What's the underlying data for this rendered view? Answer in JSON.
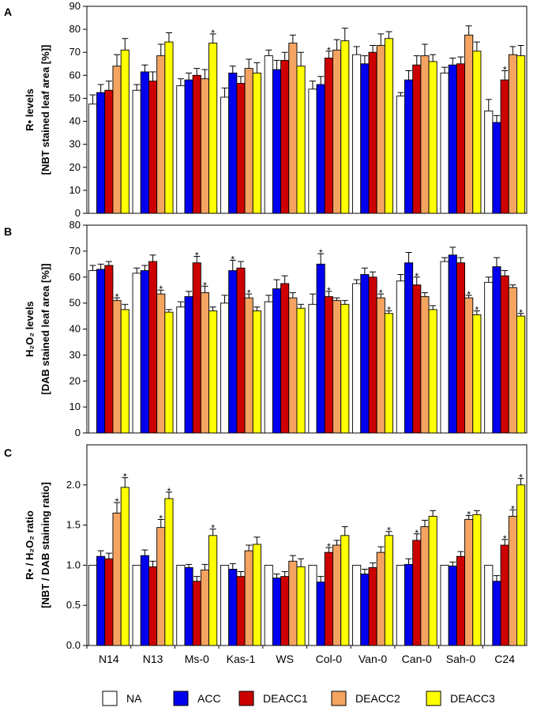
{
  "chart_data": [
    {
      "type": "bar",
      "panel": "A",
      "ylabel_line1": "R• levels",
      "ylabel_line2": "[NBT stained leaf area [%]]",
      "ylim": [
        0,
        90
      ],
      "yticks": [
        "0",
        "10",
        "20",
        "30",
        "40",
        "50",
        "60",
        "70",
        "80",
        "90"
      ],
      "categories": [
        "N14",
        "N13",
        "Ms-0",
        "Kas-1",
        "WS",
        "Col-0",
        "Van-0",
        "Can-0",
        "Sah-0",
        "C24"
      ],
      "series": [
        {
          "name": "NA",
          "values": [
            47.5,
            53.5,
            55.5,
            50.5,
            68.5,
            54,
            69,
            51,
            61,
            44.5
          ],
          "errors": [
            4,
            2.5,
            3,
            4,
            2.5,
            3.5,
            3.5,
            1.5,
            2.5,
            5
          ]
        },
        {
          "name": "ACC",
          "values": [
            52.5,
            61.5,
            58,
            61,
            62.5,
            56,
            65,
            58,
            64.5,
            39.5
          ],
          "errors": [
            3.5,
            3,
            3,
            3,
            4,
            3.5,
            3.5,
            4,
            3,
            3
          ]
        },
        {
          "name": "DEACC1",
          "values": [
            53.5,
            57.5,
            60,
            56.5,
            66.5,
            67.5,
            70,
            64.5,
            65,
            58
          ],
          "errors": [
            4,
            4,
            3,
            3,
            3.5,
            3,
            3,
            4,
            3,
            4
          ]
        },
        {
          "name": "DEACC2",
          "values": [
            64,
            68.5,
            58.5,
            63,
            74,
            71,
            73,
            68.5,
            77.5,
            69
          ],
          "errors": [
            5,
            5,
            4,
            4,
            3.5,
            4.5,
            5,
            5,
            4,
            3.5
          ]
        },
        {
          "name": "DEACC3",
          "values": [
            71,
            74.5,
            74,
            61,
            64,
            75,
            76,
            66,
            70.5,
            68.5
          ],
          "errors": [
            5,
            4,
            4,
            4.5,
            6,
            5.5,
            3,
            3,
            4,
            4.5
          ]
        }
      ],
      "stars": [
        {
          "category": "Ms-0",
          "series": "DEACC3"
        },
        {
          "category": "Col-0",
          "series": "DEACC1"
        },
        {
          "category": "C24",
          "series": "DEACC1"
        }
      ]
    },
    {
      "type": "bar",
      "panel": "B",
      "ylabel_line1": "H₂O₂ levels",
      "ylabel_line2": "[DAB stained leaf area [%]]",
      "ylim": [
        0,
        80
      ],
      "yticks": [
        "0",
        "10",
        "20",
        "30",
        "40",
        "50",
        "60",
        "70",
        "80"
      ],
      "categories": [
        "N14",
        "N13",
        "Ms-0",
        "Kas-1",
        "WS",
        "Col-0",
        "Van-0",
        "Can-0",
        "Sah-0",
        "C24"
      ],
      "series": [
        {
          "name": "NA",
          "values": [
            62.5,
            61.5,
            48.5,
            50,
            50.5,
            49.5,
            57.5,
            58.5,
            66,
            58
          ],
          "errors": [
            2,
            2,
            2,
            3,
            2.5,
            4,
            1.5,
            2.5,
            1.5,
            2
          ]
        },
        {
          "name": "ACC",
          "values": [
            63,
            62.5,
            52.5,
            62.5,
            55.5,
            65,
            61,
            65.5,
            68.5,
            64
          ],
          "errors": [
            2,
            2,
            2,
            4,
            3.5,
            4,
            2.5,
            4,
            3,
            3.5
          ]
        },
        {
          "name": "DEACC1",
          "values": [
            64.5,
            66,
            65.5,
            63.5,
            57.5,
            52.5,
            60,
            57,
            65.5,
            60.5
          ],
          "errors": [
            1.5,
            2.5,
            2.5,
            2.5,
            3,
            2,
            2,
            3,
            2,
            2
          ]
        },
        {
          "name": "DEACC2",
          "values": [
            51,
            53.5,
            54,
            52,
            52,
            51,
            52,
            52.5,
            52,
            56
          ],
          "errors": [
            1,
            1.5,
            2.5,
            1.5,
            2,
            1,
            1.5,
            1.5,
            1,
            1
          ]
        },
        {
          "name": "DEACC3",
          "values": [
            47.5,
            46.5,
            47,
            47,
            48,
            49.5,
            46,
            47.5,
            45.5,
            45
          ],
          "errors": [
            2,
            1,
            1.5,
            1.5,
            1.5,
            1.5,
            1,
            1.5,
            1.5,
            1
          ]
        }
      ],
      "stars": [
        {
          "category": "N14",
          "series": "DEACC2"
        },
        {
          "category": "N13",
          "series": "DEACC2"
        },
        {
          "category": "Ms-0",
          "series": "DEACC1"
        },
        {
          "category": "Ms-0",
          "series": "DEACC2"
        },
        {
          "category": "Kas-1",
          "series": "ACC"
        },
        {
          "category": "Kas-1",
          "series": "DEACC2"
        },
        {
          "category": "Col-0",
          "series": "ACC"
        },
        {
          "category": "Col-0",
          "series": "DEACC1"
        },
        {
          "category": "Van-0",
          "series": "DEACC2"
        },
        {
          "category": "Van-0",
          "series": "DEACC3"
        },
        {
          "category": "Can-0",
          "series": "DEACC1"
        },
        {
          "category": "Sah-0",
          "series": "DEACC2"
        },
        {
          "category": "Sah-0",
          "series": "DEACC3"
        },
        {
          "category": "C24",
          "series": "DEACC3"
        }
      ]
    },
    {
      "type": "bar",
      "panel": "C",
      "ylabel_line1": "R• / H₂O₂ ratio",
      "ylabel_line2": "[NBT / DAB staining ratio]",
      "ylim": [
        0,
        2.5
      ],
      "yticks": [
        "0.0",
        "0.5",
        "1.0",
        "1.5",
        "2.0"
      ],
      "ytick_values": [
        0,
        0.5,
        1.0,
        1.5,
        2.0
      ],
      "categories": [
        "N14",
        "N13",
        "Ms-0",
        "Kas-1",
        "WS",
        "Col-0",
        "Van-0",
        "Can-0",
        "Sah-0",
        "C24"
      ],
      "series": [
        {
          "name": "NA",
          "values": [
            1,
            1,
            1,
            1,
            1,
            1,
            1,
            1,
            1,
            1
          ],
          "errors": [
            0,
            0,
            0,
            0,
            0,
            0,
            0,
            0,
            0,
            0
          ]
        },
        {
          "name": "ACC",
          "values": [
            1.11,
            1.12,
            0.97,
            0.95,
            0.84,
            0.79,
            0.89,
            1.01,
            0.99,
            0.8
          ],
          "errors": [
            0.07,
            0.07,
            0.04,
            0.07,
            0.05,
            0.07,
            0.06,
            0.07,
            0.05,
            0.07
          ]
        },
        {
          "name": "DEACC1",
          "values": [
            1.08,
            0.98,
            0.8,
            0.86,
            0.86,
            1.16,
            0.97,
            1.31,
            1.11,
            1.25
          ],
          "errors": [
            0.07,
            0.07,
            0.06,
            0.06,
            0.06,
            0.06,
            0.06,
            0.08,
            0.06,
            0.07
          ]
        },
        {
          "name": "DEACC2",
          "values": [
            1.65,
            1.47,
            0.94,
            1.18,
            1.05,
            1.25,
            1.16,
            1.48,
            1.57,
            1.61
          ],
          "errors": [
            0.13,
            0.1,
            0.07,
            0.07,
            0.07,
            0.06,
            0.07,
            0.08,
            0.05,
            0.08
          ]
        },
        {
          "name": "DEACC3",
          "values": [
            1.97,
            1.83,
            1.37,
            1.26,
            0.98,
            1.37,
            1.37,
            1.61,
            1.63,
            2.0
          ],
          "errors": [
            0.12,
            0.08,
            0.08,
            0.09,
            0.1,
            0.11,
            0.05,
            0.07,
            0.05,
            0.08
          ]
        }
      ],
      "stars": [
        {
          "category": "N14",
          "series": "DEACC2"
        },
        {
          "category": "N14",
          "series": "DEACC3"
        },
        {
          "category": "N13",
          "series": "DEACC2"
        },
        {
          "category": "N13",
          "series": "DEACC3"
        },
        {
          "category": "Ms-0",
          "series": "DEACC3"
        },
        {
          "category": "Col-0",
          "series": "DEACC1"
        },
        {
          "category": "Van-0",
          "series": "DEACC3"
        },
        {
          "category": "Can-0",
          "series": "DEACC1"
        },
        {
          "category": "Sah-0",
          "series": "DEACC2"
        },
        {
          "category": "C24",
          "series": "DEACC1"
        },
        {
          "category": "C24",
          "series": "DEACC2"
        },
        {
          "category": "C24",
          "series": "DEACC3"
        }
      ]
    }
  ],
  "legend": [
    {
      "name": "NA",
      "color": "#ffffff"
    },
    {
      "name": "ACC",
      "color": "#0000ee"
    },
    {
      "name": "DEACC1",
      "color": "#cc0000"
    },
    {
      "name": "DEACC2",
      "color": "#f4a460"
    },
    {
      "name": "DEACC3",
      "color": "#ffff00"
    }
  ],
  "star_symbol": "*"
}
